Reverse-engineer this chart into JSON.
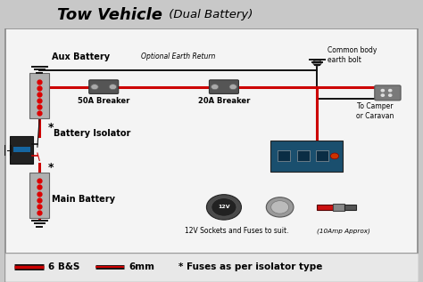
{
  "title_main": "Tow Vehicle",
  "title_sub": " (Dual Battery)",
  "bg_color": "#f0f0f0",
  "border_color": "#999999",
  "fig_bg": "#c8c8c8",
  "legend_bg": "#e8e8e8",
  "labels": {
    "aux_battery": "Aux Battery",
    "main_battery": "Main Battery",
    "battery_isolator": "Battery Isolator",
    "breaker_50": "50A Breaker",
    "breaker_20": "20A Breaker",
    "common_bolt": "Common body\nearth bolt",
    "optional_earth": "Optional Earth Return",
    "to_camper": "To Camper\nor Caravan",
    "sockets_fuses": "12V Sockets and Fuses to suit.",
    "approx": "(10Amp Approx)",
    "legend_6bs": "6 B&S",
    "legend_6mm": "6mm",
    "legend_fuse": "* Fuses as per isolator type"
  },
  "wire_red": "#cc0000",
  "wire_black": "#111111",
  "text_color": "#000000"
}
